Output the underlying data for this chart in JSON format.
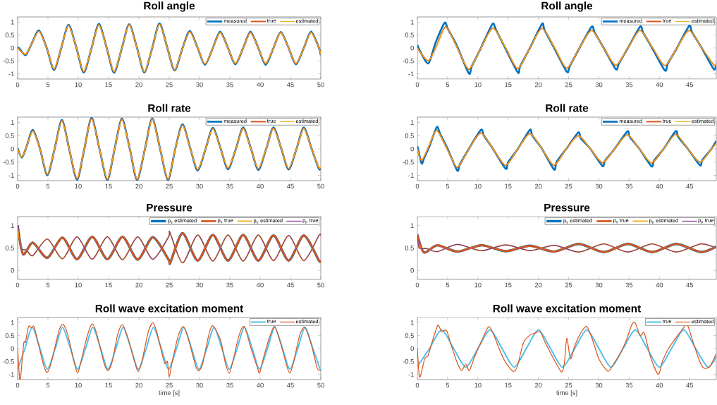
{
  "chart_data": [
    {
      "type": "line",
      "title": "Roll angle",
      "xlim": [
        0,
        50
      ],
      "ylim": [
        -1.2,
        1.2
      ],
      "xticks": [
        0,
        5,
        10,
        15,
        20,
        25,
        30,
        35,
        40,
        45,
        50
      ],
      "yticks": [
        -1,
        -0.5,
        0,
        0.5,
        1
      ],
      "legend": "top right",
      "line_style": "solid",
      "series": [
        {
          "name": "measured",
          "color": "#0072bd",
          "x": [
            0,
            0.4,
            1.3,
            2.2,
            3.5,
            4.8,
            6,
            7.2,
            8.4,
            9.7,
            10.9,
            12.2,
            13.4,
            14.7,
            15.9,
            17.2,
            18.4,
            19.7,
            20.9,
            22.2,
            23.4,
            24.7,
            25.9,
            27.2,
            28.4,
            29.7,
            30.9,
            32.2,
            33.4,
            34.7,
            35.9,
            37.2,
            38.4,
            39.7,
            40.9,
            42.2,
            43.4,
            44.7,
            45.9,
            47.2,
            48.4,
            49.7,
            50
          ],
          "values": [
            0.03,
            -0.05,
            -0.28,
            0.1,
            0.68,
            0,
            -0.85,
            0,
            0.9,
            0,
            -0.95,
            0,
            0.93,
            0,
            -0.96,
            0,
            0.92,
            0,
            -0.95,
            0,
            0.95,
            0,
            -0.87,
            0,
            0.66,
            0,
            -0.65,
            0,
            0.63,
            0,
            -0.63,
            0,
            0.63,
            0,
            -0.65,
            0,
            0.62,
            0,
            -0.63,
            0,
            0.63,
            0,
            -0.28
          ]
        },
        {
          "name": "true",
          "color": "#d95319",
          "x": [
            0,
            1.3,
            2.2,
            3.5,
            4.8,
            6,
            7.2,
            8.4,
            9.7,
            10.9,
            12.2,
            13.4,
            14.7,
            15.9,
            17.2,
            18.4,
            19.7,
            20.9,
            22.2,
            23.4,
            24.7,
            25.9,
            27.2,
            28.4,
            29.7,
            30.9,
            32.2,
            33.4,
            34.7,
            35.9,
            37.2,
            38.4,
            39.7,
            40.9,
            42.2,
            43.4,
            44.7,
            45.9,
            47.2,
            48.4,
            49.7,
            50
          ],
          "values": [
            0,
            -0.25,
            0.1,
            0.65,
            0,
            -0.82,
            0,
            0.87,
            0,
            -0.92,
            0,
            0.9,
            0,
            -0.93,
            0,
            0.9,
            0,
            -0.93,
            0,
            0.92,
            0,
            -0.85,
            0,
            0.63,
            0,
            -0.62,
            0,
            0.6,
            0,
            -0.6,
            0,
            0.6,
            0,
            -0.6,
            0,
            0.6,
            0,
            -0.6,
            0,
            0.6,
            0,
            -0.25
          ]
        },
        {
          "name": "estimated",
          "color": "#edb120",
          "x": [
            0,
            1.3,
            2.2,
            3.5,
            4.8,
            6,
            7.2,
            8.4,
            9.7,
            10.9,
            12.2,
            13.4,
            14.7,
            15.9,
            17.2,
            18.4,
            19.7,
            20.9,
            22.2,
            23.4,
            24.7,
            25.9,
            27.2,
            28.4,
            29.7,
            30.9,
            32.2,
            33.4,
            34.7,
            35.9,
            37.2,
            38.4,
            39.7,
            40.9,
            42.2,
            43.4,
            44.7,
            45.9,
            47.2,
            48.4,
            49.7,
            50
          ],
          "values": [
            0,
            -0.24,
            0.1,
            0.64,
            0,
            -0.81,
            0,
            0.86,
            0,
            -0.91,
            0,
            0.89,
            0,
            -0.92,
            0,
            0.89,
            0,
            -0.92,
            0,
            0.91,
            0,
            -0.84,
            0,
            0.62,
            0,
            -0.61,
            0,
            0.6,
            0,
            -0.6,
            0,
            0.6,
            0,
            -0.6,
            0,
            0.6,
            0,
            -0.6,
            0,
            0.6,
            0,
            -0.25
          ]
        }
      ]
    },
    {
      "type": "line",
      "title": "Roll angle",
      "xlim": [
        0,
        49.4
      ],
      "ylim": [
        -1.2,
        1.2
      ],
      "xticks": [
        0,
        5,
        10,
        15,
        20,
        25,
        30,
        35,
        40,
        45
      ],
      "yticks": [
        -1,
        -0.5,
        0,
        0.5,
        1
      ],
      "legend": "top right",
      "line_style": "solid",
      "series": [
        {
          "name": "measured",
          "color": "#0072bd",
          "x": [
            0,
            0.3,
            1.8,
            3,
            4.5,
            5,
            6.5,
            8.5,
            9,
            10.5,
            12.4,
            13,
            14.5,
            16.6,
            17,
            18.6,
            20.6,
            21,
            22.6,
            24.7,
            25.2,
            26.8,
            28.8,
            29.3,
            30.8,
            32.8,
            33.3,
            34.8,
            36.8,
            37.3,
            38.8,
            40.9,
            41.4,
            42.9,
            44.9,
            45.4,
            47,
            49,
            49.4
          ],
          "values": [
            0.12,
            -0.05,
            -0.6,
            0.2,
            0.97,
            0.75,
            0.1,
            -0.98,
            -0.7,
            0,
            0.92,
            0.7,
            0,
            -0.95,
            -0.7,
            0,
            0.93,
            0.7,
            0,
            -0.92,
            -0.7,
            0,
            0.82,
            0.6,
            0,
            -0.82,
            -0.6,
            0,
            0.82,
            0.6,
            0,
            -0.87,
            -0.6,
            0,
            0.85,
            0.6,
            0,
            -0.82,
            -0.6
          ]
        },
        {
          "name": "true",
          "color": "#d95319",
          "x": [
            0,
            1.8,
            3.2,
            4.7,
            6.6,
            8.5,
            10.5,
            12.5,
            14.6,
            16.6,
            18.6,
            20.6,
            22.7,
            24.7,
            26.8,
            28.8,
            30.8,
            32.8,
            34.8,
            36.8,
            38.9,
            40.9,
            42.9,
            44.9,
            47,
            49,
            49.4
          ],
          "values": [
            0,
            -0.5,
            0.1,
            0.82,
            0,
            -0.82,
            0,
            0.77,
            0,
            -0.8,
            0,
            0.76,
            0,
            -0.78,
            0,
            0.68,
            0,
            -0.67,
            0,
            0.68,
            0,
            -0.68,
            0,
            0.68,
            0,
            -0.66,
            -0.64
          ]
        },
        {
          "name": "estimated",
          "color": "#edb120",
          "x": [
            0,
            1.8,
            3.2,
            4.7,
            6.6,
            8.5,
            10.5,
            12.5,
            14.6,
            16.6,
            18.6,
            20.6,
            22.7,
            24.7,
            26.8,
            28.8,
            30.8,
            32.8,
            34.8,
            36.8,
            38.9,
            40.9,
            42.9,
            44.9,
            47,
            49,
            49.4
          ],
          "values": [
            0,
            -0.49,
            0.1,
            0.81,
            0,
            -0.81,
            0,
            0.76,
            0,
            -0.79,
            0,
            0.75,
            0,
            -0.77,
            0,
            0.67,
            0,
            -0.66,
            0,
            0.67,
            0,
            -0.67,
            0,
            0.67,
            0,
            -0.65,
            -0.63
          ]
        }
      ]
    },
    {
      "type": "line",
      "title": "Roll rate",
      "xlim": [
        0,
        50
      ],
      "ylim": [
        -1.2,
        1.2
      ],
      "xticks": [
        0,
        5,
        10,
        15,
        20,
        25,
        30,
        35,
        40,
        45,
        50
      ],
      "yticks": [
        -1,
        -0.5,
        0,
        0.5,
        1
      ],
      "legend": "top right",
      "line_style": "solid",
      "series": [
        {
          "name": "measured",
          "color": "#0072bd",
          "x": [
            0,
            0.7,
            1.5,
            2.5,
            3.7,
            4.9,
            6.1,
            7.3,
            8.5,
            9.8,
            11,
            12.2,
            13.5,
            14.8,
            16,
            17.2,
            18.5,
            19.7,
            21,
            22.2,
            23.5,
            24.8,
            26,
            27.2,
            28.5,
            29.7,
            31,
            32.2,
            33.5,
            34.7,
            36,
            37.2,
            38.5,
            39.7,
            41,
            42.2,
            43.5,
            44.7,
            46,
            47.2,
            48.5,
            49.7,
            50
          ],
          "values": [
            0.02,
            -0.33,
            0.1,
            0.72,
            0,
            -1.0,
            0,
            1.1,
            0,
            -1.17,
            0,
            1.18,
            0,
            -1.18,
            0,
            1.15,
            0,
            -1.18,
            0,
            1.16,
            0,
            -1.18,
            0,
            0.93,
            0,
            -0.82,
            0,
            0.8,
            0,
            -0.77,
            0,
            0.81,
            0,
            -0.8,
            0,
            0.81,
            0,
            -0.78,
            0,
            0.81,
            0,
            -0.76,
            -0.7
          ]
        },
        {
          "name": "true",
          "color": "#d95319",
          "x": [
            0,
            0.7,
            1.5,
            2.5,
            3.7,
            4.9,
            6.1,
            7.3,
            8.5,
            9.8,
            11,
            12.2,
            13.5,
            14.8,
            16,
            17.2,
            18.5,
            19.7,
            21,
            22.2,
            23.5,
            24.8,
            26,
            27.2,
            28.5,
            29.7,
            31,
            32.2,
            33.5,
            34.7,
            36,
            37.2,
            38.5,
            39.7,
            41,
            42.2,
            43.5,
            44.7,
            46,
            47.2,
            48.5,
            49.7,
            50
          ],
          "values": [
            0,
            -0.3,
            0.1,
            0.68,
            0,
            -0.97,
            0,
            1.07,
            0,
            -1.13,
            0,
            1.15,
            0,
            -1.15,
            0,
            1.12,
            0,
            -1.15,
            0,
            1.13,
            0,
            -1.15,
            0,
            0.9,
            0,
            -0.78,
            0,
            0.77,
            0,
            -0.73,
            0,
            0.78,
            0,
            -0.76,
            0,
            0.78,
            0,
            -0.75,
            0,
            0.78,
            0,
            -0.72,
            -0.68
          ]
        },
        {
          "name": "estimated",
          "color": "#edb120",
          "x": [
            0,
            0.7,
            1.5,
            2.5,
            3.7,
            4.9,
            6.1,
            7.3,
            8.5,
            9.8,
            11,
            12.2,
            13.5,
            14.8,
            16,
            17.2,
            18.5,
            19.7,
            21,
            22.2,
            23.5,
            24.8,
            26,
            27.2,
            28.5,
            29.7,
            31,
            32.2,
            33.5,
            34.7,
            36,
            37.2,
            38.5,
            39.7,
            41,
            42.2,
            43.5,
            44.7,
            46,
            47.2,
            48.5,
            49.7,
            50
          ],
          "values": [
            0,
            -0.32,
            0.1,
            0.67,
            0,
            -0.96,
            0,
            1.06,
            0,
            -1.12,
            0,
            1.14,
            0,
            -1.14,
            0,
            1.11,
            0,
            -1.14,
            0,
            1.12,
            0,
            -1.14,
            0,
            0.89,
            0,
            -0.77,
            0,
            0.76,
            0,
            -0.72,
            0,
            0.77,
            0,
            -0.75,
            0,
            0.77,
            0,
            -0.74,
            0,
            0.77,
            0,
            -0.71,
            -0.67
          ]
        }
      ]
    },
    {
      "type": "line",
      "title": "Roll rate",
      "xlim": [
        0,
        49.4
      ],
      "ylim": [
        -1.2,
        1.2
      ],
      "xticks": [
        0,
        5,
        10,
        15,
        20,
        25,
        30,
        35,
        40,
        45
      ],
      "yticks": [
        -1,
        -0.5,
        0,
        0.5,
        1
      ],
      "legend": "top right",
      "line_style": "solid",
      "series": [
        {
          "name": "measured",
          "color": "#0072bd",
          "x": [
            0,
            0.7,
            1.1,
            2,
            3.2,
            3.7,
            5,
            6.6,
            7,
            8.5,
            10.5,
            11,
            12.5,
            14.6,
            15,
            16.6,
            18.6,
            19,
            20.6,
            22.6,
            23,
            24.6,
            26.6,
            27,
            28.6,
            30.6,
            31,
            32.6,
            34.7,
            35.1,
            36.7,
            38.7,
            39.1,
            40.7,
            42.7,
            43.1,
            44.7,
            46.7,
            47.1,
            48.6,
            49.4
          ],
          "values": [
            0.1,
            -0.55,
            -0.35,
            0.1,
            0.82,
            0.6,
            0,
            -0.82,
            -0.6,
            0,
            0.72,
            0.5,
            0,
            -0.75,
            -0.5,
            0,
            0.72,
            0.5,
            0,
            -0.78,
            -0.5,
            0,
            0.62,
            0.4,
            0,
            -0.65,
            -0.45,
            0,
            0.66,
            0.45,
            0,
            -0.66,
            -0.45,
            0,
            0.67,
            0.45,
            0,
            -0.62,
            -0.42,
            0,
            0.3
          ]
        },
        {
          "name": "true",
          "color": "#d95319",
          "x": [
            0,
            0.7,
            1.9,
            3.2,
            4.9,
            6.6,
            8.5,
            10.5,
            12.5,
            14.6,
            16.6,
            18.6,
            20.6,
            22.6,
            24.6,
            26.6,
            28.6,
            30.6,
            32.6,
            34.7,
            36.7,
            38.7,
            40.7,
            42.7,
            44.7,
            46.7,
            48.6,
            49.4
          ],
          "values": [
            0,
            -0.45,
            0.1,
            0.7,
            0,
            -0.7,
            0,
            0.6,
            0,
            -0.62,
            0,
            0.58,
            0,
            -0.62,
            0,
            0.5,
            0,
            -0.52,
            0,
            0.53,
            0,
            -0.53,
            0,
            0.55,
            0,
            -0.5,
            0,
            0.22
          ]
        },
        {
          "name": "estimated",
          "color": "#edb120",
          "x": [
            0,
            0.7,
            1.9,
            3.2,
            4.9,
            6.6,
            8.5,
            10.5,
            12.5,
            14.6,
            16.6,
            18.6,
            20.6,
            22.6,
            24.6,
            26.6,
            28.6,
            30.6,
            32.6,
            34.7,
            36.7,
            38.7,
            40.7,
            42.7,
            44.7,
            46.7,
            48.6,
            49.4
          ],
          "values": [
            0,
            -0.44,
            0.1,
            0.69,
            0,
            -0.69,
            0,
            0.6,
            0,
            -0.61,
            0,
            0.57,
            0,
            -0.61,
            0,
            0.5,
            0,
            -0.51,
            0,
            0.53,
            0,
            -0.52,
            0,
            0.54,
            0,
            -0.5,
            0,
            0.21
          ]
        }
      ]
    },
    {
      "type": "line",
      "title": "Pressure",
      "xlim": [
        0,
        50
      ],
      "ylim": [
        -0.2,
        1.2
      ],
      "xticks": [
        0,
        5,
        10,
        15,
        20,
        25,
        30,
        35,
        40,
        45,
        50
      ],
      "yticks": [
        0,
        0.5,
        1
      ],
      "legend": "top right",
      "line_style": "solid",
      "series": [
        {
          "name": "p$_{s}$ estimated",
          "color": "#0072bd",
          "x": [
            0,
            0.9,
            2.5,
            4.9,
            7.4,
            9.8,
            12.3,
            14.8,
            17.3,
            19.8,
            22.3,
            24.9,
            25.2,
            27.2,
            29.7,
            32.2,
            34.7,
            37.2,
            39.7,
            42.2,
            44.7,
            47.2,
            49.7,
            50
          ],
          "values": [
            1.0,
            0.36,
            0.62,
            0.28,
            0.73,
            0.25,
            0.75,
            0.25,
            0.75,
            0.24,
            0.74,
            0.24,
            0.18,
            0.83,
            0.22,
            0.79,
            0.22,
            0.79,
            0.22,
            0.78,
            0.22,
            0.78,
            0.22,
            0.23
          ]
        },
        {
          "name": "p$_{s}$ true",
          "color": "#d95319",
          "x": [
            0,
            0.9,
            2.5,
            4.9,
            7.4,
            9.8,
            12.3,
            14.8,
            17.3,
            19.8,
            22.3,
            24.9,
            25.2,
            27.2,
            29.7,
            32.2,
            34.7,
            37.2,
            39.7,
            42.2,
            44.7,
            47.2,
            49.7,
            50
          ],
          "values": [
            1.0,
            0.36,
            0.62,
            0.28,
            0.73,
            0.25,
            0.75,
            0.25,
            0.75,
            0.24,
            0.74,
            0.24,
            0.17,
            0.83,
            0.22,
            0.79,
            0.22,
            0.79,
            0.22,
            0.78,
            0.22,
            0.78,
            0.22,
            0.23
          ]
        },
        {
          "name": "p$_{p}$ estimated",
          "color": "#edb120",
          "x": [
            0,
            0.15,
            0.6,
            1.5,
            2.5,
            4.9,
            7.4,
            9.8,
            12.3,
            14.8,
            17.3,
            19.8,
            22.3,
            24.9,
            25.1,
            27.2,
            29.7,
            32.2,
            34.7,
            37.2,
            39.7,
            42.2,
            44.7,
            47.2,
            49.7,
            50
          ],
          "values": [
            0.5,
            0.97,
            0.5,
            0.45,
            0.33,
            0.7,
            0.26,
            0.75,
            0.25,
            0.75,
            0.24,
            0.75,
            0.25,
            0.75,
            0.85,
            0.17,
            0.79,
            0.21,
            0.79,
            0.21,
            0.79,
            0.22,
            0.78,
            0.22,
            0.78,
            0.77
          ]
        },
        {
          "name": "p$_{p}$ true",
          "color": "#7e2f8e",
          "x": [
            0,
            0.15,
            0.6,
            1.5,
            2.5,
            4.9,
            7.4,
            9.8,
            12.3,
            14.8,
            17.3,
            19.8,
            22.3,
            24.9,
            25.1,
            27.2,
            29.7,
            32.2,
            34.7,
            37.2,
            39.7,
            42.2,
            44.7,
            47.2,
            49.7,
            50
          ],
          "values": [
            0.97,
            0.97,
            0.5,
            0.45,
            0.33,
            0.7,
            0.26,
            0.75,
            0.25,
            0.75,
            0.24,
            0.75,
            0.25,
            0.75,
            0.85,
            0.17,
            0.79,
            0.21,
            0.79,
            0.21,
            0.79,
            0.22,
            0.78,
            0.22,
            0.78,
            0.77
          ]
        }
      ]
    },
    {
      "type": "line",
      "title": "Pressure",
      "xlim": [
        0,
        49.4
      ],
      "ylim": [
        -0.2,
        1.2
      ],
      "xticks": [
        0,
        5,
        10,
        15,
        20,
        25,
        30,
        35,
        40,
        45
      ],
      "yticks": [
        0,
        0.5,
        1
      ],
      "legend": "top right",
      "line_style": "solid",
      "series": [
        {
          "name": "p$_{s}$ estimated",
          "color": "#0072bd",
          "x": [
            0,
            1.1,
            3.3,
            6.6,
            10.6,
            14.6,
            18.6,
            22.6,
            26.7,
            30.8,
            34.8,
            38.8,
            42.8,
            46.8,
            49.4
          ],
          "values": [
            0.8,
            0.4,
            0.56,
            0.42,
            0.56,
            0.43,
            0.55,
            0.42,
            0.59,
            0.41,
            0.59,
            0.41,
            0.59,
            0.41,
            0.53
          ]
        },
        {
          "name": "p$_{s}$ true",
          "color": "#d95319",
          "x": [
            0,
            1.1,
            3.3,
            6.6,
            10.6,
            14.6,
            18.6,
            22.6,
            26.7,
            30.8,
            34.8,
            38.8,
            42.8,
            46.8,
            49.4
          ],
          "values": [
            0.8,
            0.4,
            0.56,
            0.42,
            0.56,
            0.43,
            0.55,
            0.42,
            0.59,
            0.41,
            0.59,
            0.41,
            0.59,
            0.41,
            0.53
          ]
        },
        {
          "name": "p$_{p}$ estimated",
          "color": "#edb120",
          "x": [
            0,
            0.3,
            1.5,
            3.3,
            6.6,
            10.6,
            14.6,
            18.6,
            22.6,
            26.7,
            30.8,
            34.8,
            38.8,
            42.8,
            46.8,
            49.4
          ],
          "values": [
            0.62,
            0.5,
            0.49,
            0.42,
            0.58,
            0.44,
            0.57,
            0.44,
            0.56,
            0.41,
            0.59,
            0.41,
            0.59,
            0.41,
            0.59,
            0.5
          ]
        },
        {
          "name": "p$_{p}$ true",
          "color": "#7e2f8e",
          "x": [
            0,
            0.3,
            1.5,
            3.3,
            6.6,
            10.6,
            14.6,
            18.6,
            22.6,
            26.7,
            30.8,
            34.8,
            38.8,
            42.8,
            46.8,
            49.4
          ],
          "values": [
            0.8,
            0.5,
            0.49,
            0.42,
            0.58,
            0.44,
            0.57,
            0.44,
            0.56,
            0.41,
            0.59,
            0.41,
            0.59,
            0.41,
            0.59,
            0.5
          ]
        }
      ]
    },
    {
      "type": "line",
      "title": "Roll wave excitation moment",
      "xlabel": "time [s]",
      "xlim": [
        0,
        50
      ],
      "ylim": [
        -1.2,
        1.2
      ],
      "xticks": [
        0,
        5,
        10,
        15,
        20,
        25,
        30,
        35,
        40,
        45,
        50
      ],
      "yticks": [
        -1,
        -0.5,
        0,
        0.5,
        1
      ],
      "legend": "top right",
      "line_style": "solid",
      "series": [
        {
          "name": "true",
          "color": "#4dbeee",
          "x": [
            0,
            1.2,
            2.4,
            3.7,
            4.9,
            6.2,
            7.4,
            8.7,
            9.9,
            11.2,
            12.4,
            13.7,
            14.9,
            16.2,
            17.4,
            18.7,
            19.9,
            21.2,
            22.4,
            23.7,
            24.9,
            26.2,
            27.4,
            28.7,
            29.9,
            31.2,
            32.4,
            33.7,
            34.9,
            36.2,
            37.4,
            38.7,
            39.9,
            41.2,
            42.4,
            43.7,
            44.9,
            46.2,
            47.4,
            48.7,
            49.9,
            50
          ],
          "values": [
            -0.8,
            0,
            0.82,
            0,
            -0.8,
            0,
            0.82,
            0,
            -0.8,
            0,
            0.82,
            0,
            -0.8,
            0,
            0.82,
            0,
            -0.8,
            0,
            0.82,
            0,
            -0.8,
            0,
            0.82,
            0,
            -0.8,
            0,
            0.82,
            0,
            -0.8,
            0,
            0.82,
            0,
            -0.8,
            0,
            0.82,
            0,
            -0.8,
            0,
            0.82,
            0,
            -0.8,
            -0.8
          ]
        },
        {
          "name": "estimated",
          "color": "#d95319",
          "x": [
            0,
            0.3,
            0.5,
            1,
            1.3,
            1.8,
            2.3,
            2.7,
            3.3,
            4.3,
            4.9,
            5.6,
            6.8,
            7.5,
            8.3,
            9.4,
            9.9,
            10.4,
            11.5,
            12.3,
            13,
            14.3,
            14.9,
            15.6,
            16.5,
            17.3,
            18.2,
            19.4,
            19.9,
            20.5,
            21.5,
            22.3,
            23,
            24.2,
            24.7,
            25,
            25.5,
            26.5,
            27.3,
            28,
            29.4,
            29.9,
            30.5,
            31.5,
            32.2,
            33.5,
            34.2,
            34.9,
            35.5,
            36.5,
            37.4,
            38.5,
            39.5,
            39.9,
            40.5,
            41.5,
            42.4,
            43.5,
            44.3,
            44.9,
            45.5,
            46.5,
            47.4,
            48.5,
            49.4,
            50
          ],
          "values": [
            0,
            -1.1,
            -1.1,
            0.2,
            0.25,
            0.85,
            0.8,
            0.85,
            0.3,
            -0.65,
            -0.92,
            -0.5,
            0.68,
            0.93,
            0.5,
            -0.6,
            -0.95,
            -0.55,
            0.5,
            0.95,
            0.6,
            -0.6,
            -0.85,
            -0.5,
            0.55,
            0.92,
            0.4,
            -0.6,
            -0.88,
            -0.5,
            0.6,
            1.0,
            0.6,
            -0.55,
            -0.5,
            -1.1,
            -0.5,
            0.5,
            0.85,
            0.5,
            -0.7,
            -0.85,
            -0.6,
            0.5,
            0.88,
            0.3,
            -0.5,
            -0.95,
            -0.5,
            0.5,
            0.85,
            0,
            -0.7,
            -0.95,
            -0.4,
            0.4,
            0.85,
            0.1,
            -0.6,
            -0.95,
            -0.55,
            0.5,
            0.82,
            0.1,
            -0.75,
            -0.85
          ]
        }
      ]
    },
    {
      "type": "line",
      "title": "Roll wave excitation moment",
      "xlabel": "time [s]",
      "xlim": [
        0,
        49.4
      ],
      "ylim": [
        -1.2,
        1.2
      ],
      "xticks": [
        0,
        5,
        10,
        15,
        20,
        25,
        30,
        35,
        40,
        45
      ],
      "yticks": [
        -1,
        -0.5,
        0,
        0.5,
        1
      ],
      "legend": "top right",
      "line_style": "solid",
      "series": [
        {
          "name": "true",
          "color": "#4dbeee",
          "x": [
            0,
            2,
            4,
            6,
            8,
            10,
            12,
            14,
            16,
            18,
            20,
            22,
            24,
            26,
            28,
            30,
            32,
            34,
            36,
            38,
            40,
            42,
            44,
            46,
            48,
            49.4
          ],
          "values": [
            -0.7,
            0,
            0.72,
            0,
            -0.72,
            0,
            0.72,
            0,
            -0.72,
            0,
            0.72,
            0,
            -0.72,
            0,
            0.72,
            0,
            -0.72,
            0,
            0.72,
            0,
            -0.72,
            0,
            0.72,
            0,
            -0.72,
            -0.3
          ]
        },
        {
          "name": "estimated",
          "color": "#d95319",
          "x": [
            0,
            0.3,
            0.6,
            1.2,
            1.8,
            2.5,
            3.4,
            4,
            4.8,
            5.5,
            6.5,
            7.3,
            8,
            8.6,
            9.5,
            11,
            11.8,
            12.5,
            13.5,
            14.5,
            15.8,
            16.5,
            17.5,
            18.5,
            19.5,
            20.3,
            21,
            22.3,
            23.8,
            24.3,
            24.7,
            25.3,
            26,
            27,
            28,
            29,
            30,
            31.5,
            32.4,
            33.5,
            34.5,
            35.4,
            36,
            36.8,
            37.5,
            38.5,
            39.8,
            40.5,
            41.5,
            43,
            44,
            44.5,
            45.5,
            46.5,
            47.3,
            48.3,
            49.4
          ],
          "values": [
            0,
            -1.05,
            -1.0,
            -0.4,
            -0.25,
            0.3,
            0.9,
            0.65,
            0.7,
            0.2,
            -0.5,
            -0.85,
            -0.6,
            -0.85,
            -0.3,
            0.5,
            0.85,
            0.6,
            0,
            -0.5,
            -0.88,
            -0.7,
            0.2,
            0.5,
            0.6,
            0.65,
            0.3,
            -0.3,
            -0.9,
            -0.55,
            0.4,
            -0.4,
            0.1,
            0.6,
            0.85,
            0.3,
            -0.4,
            -0.88,
            -0.6,
            -0.2,
            0.3,
            0.9,
            1.0,
            0.5,
            0.6,
            -0.3,
            -1.0,
            -0.5,
            0,
            0.5,
            0.8,
            1.0,
            0.3,
            -0.4,
            -0.75,
            -0.7,
            -0.2
          ]
        }
      ]
    }
  ]
}
